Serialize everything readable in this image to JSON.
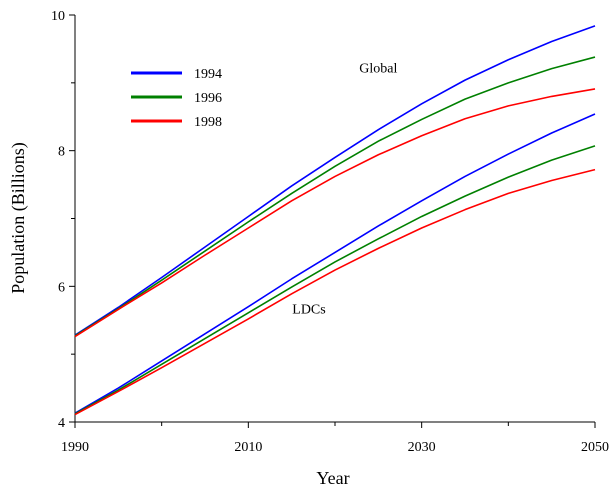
{
  "chart_data": {
    "type": "line",
    "xlabel": "Year",
    "ylabel": "Population (Billions)",
    "xlim": [
      1990,
      2050
    ],
    "ylim": [
      4,
      10
    ],
    "x_ticks": [
      1990,
      2010,
      2030,
      2050
    ],
    "x_minor_ticks": [
      2000,
      2020,
      2040
    ],
    "y_ticks": [
      4,
      6,
      8,
      10
    ],
    "y_minor_ticks": [
      5,
      7,
      9
    ],
    "grid": false,
    "legend_position": "top-left",
    "x": [
      1990,
      1995,
      2000,
      2005,
      2010,
      2015,
      2020,
      2025,
      2030,
      2035,
      2040,
      2045,
      2050
    ],
    "series": [
      {
        "name": "1994",
        "group": "Global",
        "color": "#0000ff",
        "values": [
          5.28,
          5.69,
          6.13,
          6.58,
          7.03,
          7.48,
          7.9,
          8.31,
          8.69,
          9.04,
          9.34,
          9.61,
          9.84
        ]
      },
      {
        "name": "1996",
        "group": "Global",
        "color": "#008000",
        "values": [
          5.27,
          5.67,
          6.09,
          6.52,
          6.95,
          7.37,
          7.77,
          8.14,
          8.46,
          8.76,
          9.0,
          9.21,
          9.38
        ]
      },
      {
        "name": "1998",
        "group": "Global",
        "color": "#ff0000",
        "values": [
          5.26,
          5.66,
          6.05,
          6.46,
          6.86,
          7.26,
          7.62,
          7.94,
          8.22,
          8.47,
          8.66,
          8.8,
          8.91
        ]
      },
      {
        "name": "1994",
        "group": "LDCs",
        "color": "#0000ff",
        "values": [
          4.13,
          4.5,
          4.9,
          5.3,
          5.7,
          6.11,
          6.5,
          6.89,
          7.26,
          7.62,
          7.95,
          8.26,
          8.54
        ]
      },
      {
        "name": "1996",
        "group": "LDCs",
        "color": "#008000",
        "values": [
          4.12,
          4.47,
          4.85,
          5.23,
          5.61,
          5.99,
          6.36,
          6.7,
          7.03,
          7.33,
          7.61,
          7.86,
          8.07
        ]
      },
      {
        "name": "1998",
        "group": "LDCs",
        "color": "#ff0000",
        "values": [
          4.11,
          4.45,
          4.8,
          5.16,
          5.52,
          5.89,
          6.24,
          6.56,
          6.86,
          7.13,
          7.37,
          7.56,
          7.72
        ]
      }
    ],
    "legend": [
      {
        "label": "1994",
        "color": "#0000ff"
      },
      {
        "label": "1996",
        "color": "#008000"
      },
      {
        "label": "1998",
        "color": "#ff0000"
      }
    ],
    "annotations": [
      {
        "text": "Global",
        "x": 2025,
        "y": 9.15
      },
      {
        "text": "LDCs",
        "x": 2017,
        "y": 5.6
      }
    ]
  }
}
